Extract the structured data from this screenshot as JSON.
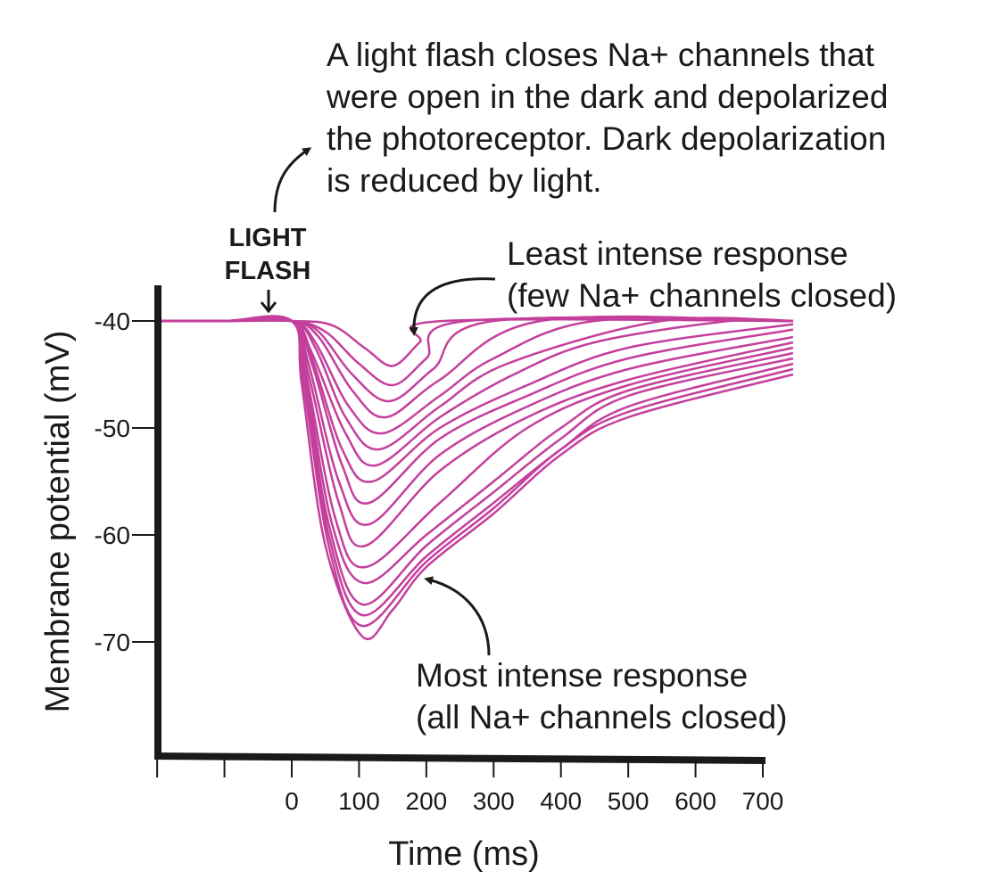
{
  "chart_data": {
    "type": "line",
    "xlabel": "Time (ms)",
    "ylabel": "Membrane potential (mV)",
    "xlim": [
      -200,
      745
    ],
    "ylim": [
      -80,
      -37
    ],
    "x_ticks": [
      -200,
      -100,
      0,
      100,
      200,
      300,
      400,
      500,
      600,
      700
    ],
    "x_tick_labels": [
      "",
      "",
      "0",
      "100",
      "200",
      "300",
      "400",
      "500",
      "600",
      "700"
    ],
    "y_ticks": [
      -40,
      -50,
      -60,
      -70
    ],
    "y_tick_labels": [
      "-40",
      "-50",
      "-60",
      "-70"
    ],
    "grid": false,
    "line_color": "#c43f9c",
    "series": [
      {
        "points": [
          [
            -200,
            -40
          ],
          [
            -100,
            -40
          ],
          [
            0,
            -40
          ],
          [
            60,
            -40.4
          ],
          [
            110,
            -42.6
          ],
          [
            150,
            -44.2
          ],
          [
            190,
            -42
          ],
          [
            225,
            -40
          ],
          [
            745,
            -40
          ]
        ]
      },
      {
        "points": [
          [
            -200,
            -40
          ],
          [
            -100,
            -40
          ],
          [
            0,
            -40
          ],
          [
            50,
            -41
          ],
          [
            100,
            -44
          ],
          [
            150,
            -46
          ],
          [
            200,
            -43.5
          ],
          [
            260,
            -40
          ],
          [
            745,
            -40
          ]
        ]
      },
      {
        "points": [
          [
            -200,
            -40
          ],
          [
            -100,
            -40
          ],
          [
            0,
            -40
          ],
          [
            40,
            -41
          ],
          [
            90,
            -45
          ],
          [
            145,
            -47.5
          ],
          [
            210,
            -44.5
          ],
          [
            300,
            -40
          ],
          [
            745,
            -40
          ]
        ]
      },
      {
        "points": [
          [
            -200,
            -40
          ],
          [
            -100,
            -40
          ],
          [
            0,
            -40
          ],
          [
            40,
            -41.5
          ],
          [
            90,
            -46.5
          ],
          [
            140,
            -49
          ],
          [
            220,
            -45.5
          ],
          [
            370,
            -40
          ],
          [
            745,
            -40
          ]
        ]
      },
      {
        "points": [
          [
            -200,
            -40
          ],
          [
            -100,
            -40
          ],
          [
            0,
            -40
          ],
          [
            35,
            -42
          ],
          [
            85,
            -48
          ],
          [
            135,
            -50.5
          ],
          [
            220,
            -47
          ],
          [
            300,
            -43.5
          ],
          [
            450,
            -40
          ],
          [
            745,
            -40
          ]
        ]
      },
      {
        "points": [
          [
            -200,
            -40
          ],
          [
            -100,
            -40
          ],
          [
            0,
            -40
          ],
          [
            35,
            -42.5
          ],
          [
            80,
            -49
          ],
          [
            130,
            -52
          ],
          [
            220,
            -48
          ],
          [
            320,
            -44
          ],
          [
            550,
            -40
          ],
          [
            745,
            -40
          ]
        ]
      },
      {
        "points": [
          [
            -200,
            -40
          ],
          [
            -100,
            -40
          ],
          [
            0,
            -40
          ],
          [
            30,
            -43
          ],
          [
            80,
            -50.5
          ],
          [
            125,
            -53.5
          ],
          [
            220,
            -49
          ],
          [
            330,
            -45
          ],
          [
            450,
            -42
          ],
          [
            650,
            -40
          ],
          [
            745,
            -40
          ]
        ]
      },
      {
        "points": [
          [
            -200,
            -40
          ],
          [
            -100,
            -40
          ],
          [
            0,
            -40
          ],
          [
            30,
            -43.5
          ],
          [
            75,
            -52
          ],
          [
            120,
            -55
          ],
          [
            220,
            -50
          ],
          [
            350,
            -46
          ],
          [
            500,
            -42.5
          ],
          [
            745,
            -40.3
          ]
        ]
      },
      {
        "points": [
          [
            -200,
            -40
          ],
          [
            -100,
            -40
          ],
          [
            0,
            -40
          ],
          [
            30,
            -44
          ],
          [
            75,
            -53.5
          ],
          [
            115,
            -57
          ],
          [
            220,
            -51
          ],
          [
            350,
            -47
          ],
          [
            500,
            -43.5
          ],
          [
            745,
            -40.8
          ]
        ]
      },
      {
        "points": [
          [
            -200,
            -40
          ],
          [
            -100,
            -40
          ],
          [
            0,
            -40
          ],
          [
            25,
            -44
          ],
          [
            70,
            -55
          ],
          [
            115,
            -59
          ],
          [
            220,
            -52.5
          ],
          [
            350,
            -48
          ],
          [
            500,
            -44.5
          ],
          [
            745,
            -41.5
          ]
        ]
      },
      {
        "points": [
          [
            -200,
            -40
          ],
          [
            -100,
            -40
          ],
          [
            0,
            -40
          ],
          [
            25,
            -45
          ],
          [
            70,
            -57
          ],
          [
            110,
            -61
          ],
          [
            220,
            -54
          ],
          [
            350,
            -49
          ],
          [
            500,
            -45.5
          ],
          [
            745,
            -42
          ]
        ]
      },
      {
        "points": [
          [
            -200,
            -40
          ],
          [
            -100,
            -40
          ],
          [
            0,
            -40
          ],
          [
            20,
            -44.5
          ],
          [
            65,
            -58.5
          ],
          [
            110,
            -63
          ],
          [
            220,
            -57
          ],
          [
            350,
            -50
          ],
          [
            500,
            -46
          ],
          [
            745,
            -42.5
          ]
        ]
      },
      {
        "points": [
          [
            -200,
            -40
          ],
          [
            -100,
            -40
          ],
          [
            0,
            -40
          ],
          [
            20,
            -45
          ],
          [
            60,
            -59
          ],
          [
            108,
            -64.5
          ],
          [
            200,
            -60
          ],
          [
            300,
            -55
          ],
          [
            400,
            -50
          ],
          [
            500,
            -46.5
          ],
          [
            745,
            -43
          ]
        ]
      },
      {
        "points": [
          [
            -200,
            -40
          ],
          [
            -100,
            -40
          ],
          [
            0,
            -40
          ],
          [
            20,
            -45.5
          ],
          [
            55,
            -59
          ],
          [
            105,
            -66.5
          ],
          [
            200,
            -61
          ],
          [
            300,
            -56
          ],
          [
            400,
            -51
          ],
          [
            500,
            -47
          ],
          [
            745,
            -43.5
          ]
        ]
      },
      {
        "points": [
          [
            -200,
            -40
          ],
          [
            -100,
            -40
          ],
          [
            0,
            -40
          ],
          [
            18,
            -45.5
          ],
          [
            55,
            -60
          ],
          [
            105,
            -67.5
          ],
          [
            200,
            -62
          ],
          [
            300,
            -57
          ],
          [
            400,
            -52
          ],
          [
            500,
            -48
          ],
          [
            745,
            -44
          ]
        ]
      },
      {
        "points": [
          [
            -200,
            -40
          ],
          [
            -100,
            -40
          ],
          [
            0,
            -40
          ],
          [
            18,
            -46
          ],
          [
            55,
            -61
          ],
          [
            105,
            -68.5
          ],
          [
            200,
            -62.5
          ],
          [
            300,
            -57.5
          ],
          [
            400,
            -52
          ],
          [
            500,
            -48.5
          ],
          [
            745,
            -44.5
          ]
        ]
      },
      {
        "points": [
          [
            -200,
            -40
          ],
          [
            -100,
            -40
          ],
          [
            0,
            -40
          ],
          [
            15,
            -46
          ],
          [
            50,
            -61
          ],
          [
            105,
            -69.5
          ],
          [
            150,
            -67
          ],
          [
            200,
            -63
          ],
          [
            300,
            -58
          ],
          [
            400,
            -52.5
          ],
          [
            500,
            -49
          ],
          [
            745,
            -45
          ]
        ]
      }
    ],
    "annotations": {
      "flash_label_1": "LIGHT",
      "flash_label_2": "FLASH",
      "top_note": [
        "A light flash closes Na+ channels that",
        "were open in the dark and depolarized",
        "the photoreceptor. Dark depolarization",
        "is reduced by light."
      ],
      "least": [
        "Least intense response",
        "(few Na+ channels closed)"
      ],
      "most": [
        "Most intense response",
        "(all Na+ channels closed)"
      ]
    }
  }
}
